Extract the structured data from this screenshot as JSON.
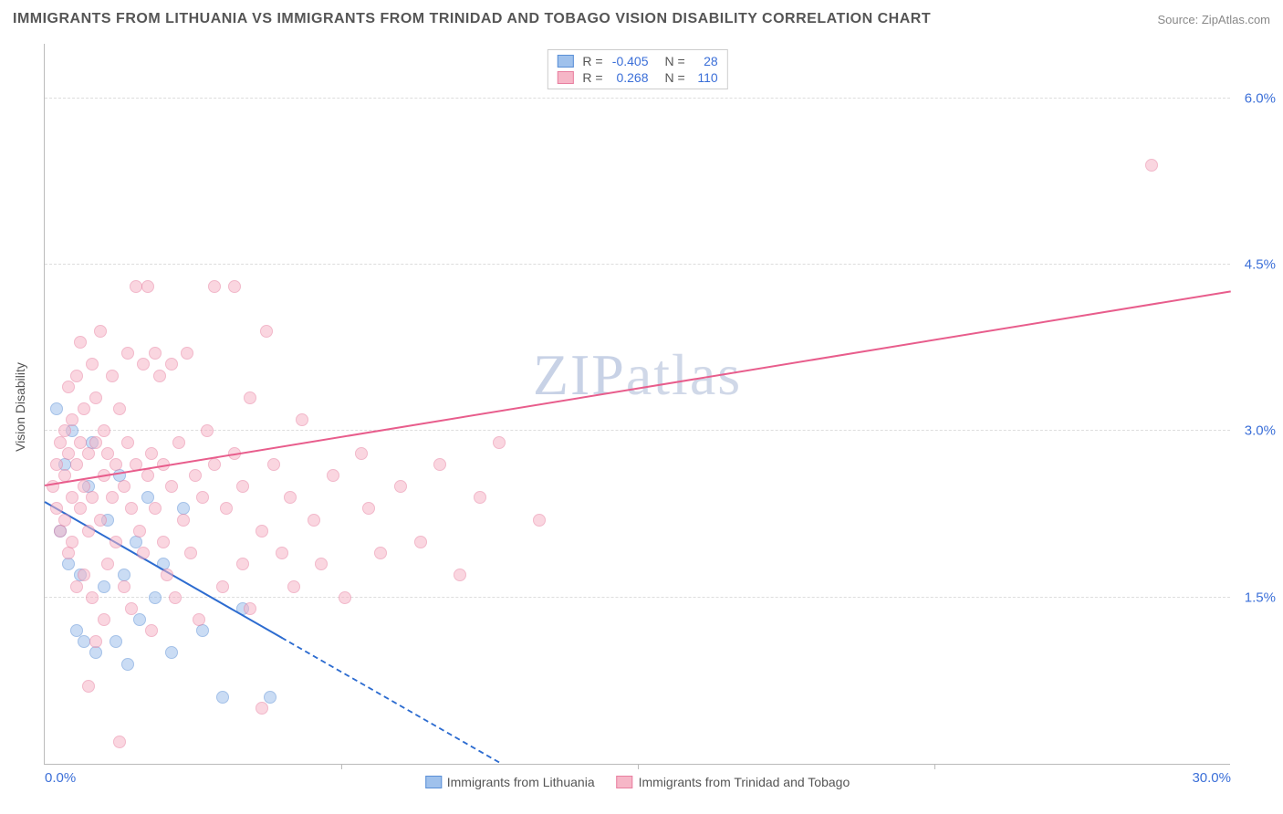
{
  "title": "IMMIGRANTS FROM LITHUANIA VS IMMIGRANTS FROM TRINIDAD AND TOBAGO VISION DISABILITY CORRELATION CHART",
  "source": "Source: ZipAtlas.com",
  "watermark": "ZIPatlas",
  "ylabel": "Vision Disability",
  "chart": {
    "type": "scatter",
    "background_color": "#ffffff",
    "grid_color": "#dddddd",
    "axis_color": "#bbbbbb",
    "xlim": [
      0.0,
      30.0
    ],
    "ylim": [
      0.0,
      6.5
    ],
    "xticks": [
      0.0,
      30.0
    ],
    "xtick_labels": [
      "0.0%",
      "30.0%"
    ],
    "xtick_marks": [
      0.25,
      0.5,
      0.75
    ],
    "yticks": [
      1.5,
      3.0,
      4.5,
      6.0
    ],
    "ytick_labels": [
      "1.5%",
      "3.0%",
      "4.5%",
      "6.0%"
    ],
    "point_radius": 7,
    "point_opacity": 0.55,
    "label_fontsize": 15,
    "tick_color": "#3b6fd8"
  },
  "series": [
    {
      "name": "Immigrants from Lithuania",
      "fill": "#9fc1ec",
      "stroke": "#5a8fd6",
      "stats": {
        "R": "-0.405",
        "N": "28"
      },
      "trend": {
        "x1": 0.0,
        "y1": 2.35,
        "x2": 11.5,
        "y2": 0.0,
        "color": "#2d6cd0",
        "width": 2.5,
        "dash_from_x": 6.0
      },
      "points": [
        [
          0.3,
          3.2
        ],
        [
          0.4,
          2.1
        ],
        [
          0.5,
          2.7
        ],
        [
          0.6,
          1.8
        ],
        [
          0.7,
          3.0
        ],
        [
          0.8,
          1.2
        ],
        [
          0.9,
          1.7
        ],
        [
          1.0,
          1.1
        ],
        [
          1.1,
          2.5
        ],
        [
          1.2,
          2.9
        ],
        [
          1.3,
          1.0
        ],
        [
          1.5,
          1.6
        ],
        [
          1.6,
          2.2
        ],
        [
          1.8,
          1.1
        ],
        [
          1.9,
          2.6
        ],
        [
          2.0,
          1.7
        ],
        [
          2.1,
          0.9
        ],
        [
          2.3,
          2.0
        ],
        [
          2.4,
          1.3
        ],
        [
          2.6,
          2.4
        ],
        [
          2.8,
          1.5
        ],
        [
          3.0,
          1.8
        ],
        [
          3.2,
          1.0
        ],
        [
          3.5,
          2.3
        ],
        [
          4.0,
          1.2
        ],
        [
          4.5,
          0.6
        ],
        [
          5.0,
          1.4
        ],
        [
          5.7,
          0.6
        ]
      ]
    },
    {
      "name": "Immigrants from Trinidad and Tobago",
      "fill": "#f6b6c7",
      "stroke": "#e87fa0",
      "stats": {
        "R": "0.268",
        "N": "110"
      },
      "trend": {
        "x1": 0.0,
        "y1": 2.5,
        "x2": 30.0,
        "y2": 4.25,
        "color": "#e85d8c",
        "width": 2.5
      },
      "points": [
        [
          0.2,
          2.5
        ],
        [
          0.3,
          2.7
        ],
        [
          0.3,
          2.3
        ],
        [
          0.4,
          2.9
        ],
        [
          0.4,
          2.1
        ],
        [
          0.5,
          3.0
        ],
        [
          0.5,
          2.6
        ],
        [
          0.5,
          2.2
        ],
        [
          0.6,
          2.8
        ],
        [
          0.6,
          3.4
        ],
        [
          0.6,
          1.9
        ],
        [
          0.7,
          2.4
        ],
        [
          0.7,
          3.1
        ],
        [
          0.7,
          2.0
        ],
        [
          0.8,
          2.7
        ],
        [
          0.8,
          3.5
        ],
        [
          0.8,
          1.6
        ],
        [
          0.9,
          2.3
        ],
        [
          0.9,
          2.9
        ],
        [
          0.9,
          3.8
        ],
        [
          1.0,
          2.5
        ],
        [
          1.0,
          1.7
        ],
        [
          1.0,
          3.2
        ],
        [
          1.1,
          2.1
        ],
        [
          1.1,
          2.8
        ],
        [
          1.1,
          0.7
        ],
        [
          1.2,
          3.6
        ],
        [
          1.2,
          2.4
        ],
        [
          1.2,
          1.5
        ],
        [
          1.3,
          2.9
        ],
        [
          1.3,
          1.1
        ],
        [
          1.3,
          3.3
        ],
        [
          1.4,
          2.2
        ],
        [
          1.4,
          3.9
        ],
        [
          1.5,
          2.6
        ],
        [
          1.5,
          1.3
        ],
        [
          1.5,
          3.0
        ],
        [
          1.6,
          2.8
        ],
        [
          1.6,
          1.8
        ],
        [
          1.7,
          2.4
        ],
        [
          1.7,
          3.5
        ],
        [
          1.8,
          2.0
        ],
        [
          1.8,
          2.7
        ],
        [
          1.9,
          0.2
        ],
        [
          1.9,
          3.2
        ],
        [
          2.0,
          2.5
        ],
        [
          2.0,
          1.6
        ],
        [
          2.1,
          2.9
        ],
        [
          2.1,
          3.7
        ],
        [
          2.2,
          2.3
        ],
        [
          2.2,
          1.4
        ],
        [
          2.3,
          2.7
        ],
        [
          2.3,
          4.3
        ],
        [
          2.4,
          2.1
        ],
        [
          2.5,
          3.6
        ],
        [
          2.5,
          1.9
        ],
        [
          2.6,
          2.6
        ],
        [
          2.6,
          4.3
        ],
        [
          2.7,
          2.8
        ],
        [
          2.7,
          1.2
        ],
        [
          2.8,
          3.7
        ],
        [
          2.8,
          2.3
        ],
        [
          2.9,
          3.5
        ],
        [
          3.0,
          2.0
        ],
        [
          3.0,
          2.7
        ],
        [
          3.1,
          1.7
        ],
        [
          3.2,
          2.5
        ],
        [
          3.2,
          3.6
        ],
        [
          3.3,
          1.5
        ],
        [
          3.4,
          2.9
        ],
        [
          3.5,
          2.2
        ],
        [
          3.6,
          3.7
        ],
        [
          3.7,
          1.9
        ],
        [
          3.8,
          2.6
        ],
        [
          3.9,
          1.3
        ],
        [
          4.0,
          2.4
        ],
        [
          4.1,
          3.0
        ],
        [
          4.3,
          2.7
        ],
        [
          4.3,
          4.3
        ],
        [
          4.5,
          1.6
        ],
        [
          4.6,
          2.3
        ],
        [
          4.8,
          2.8
        ],
        [
          4.8,
          4.3
        ],
        [
          5.0,
          1.8
        ],
        [
          5.0,
          2.5
        ],
        [
          5.2,
          1.4
        ],
        [
          5.2,
          3.3
        ],
        [
          5.5,
          2.1
        ],
        [
          5.5,
          0.5
        ],
        [
          5.6,
          3.9
        ],
        [
          5.8,
          2.7
        ],
        [
          6.0,
          1.9
        ],
        [
          6.2,
          2.4
        ],
        [
          6.3,
          1.6
        ],
        [
          6.5,
          3.1
        ],
        [
          6.8,
          2.2
        ],
        [
          7.0,
          1.8
        ],
        [
          7.3,
          2.6
        ],
        [
          7.6,
          1.5
        ],
        [
          8.0,
          2.8
        ],
        [
          8.2,
          2.3
        ],
        [
          8.5,
          1.9
        ],
        [
          9.0,
          2.5
        ],
        [
          9.5,
          2.0
        ],
        [
          10.0,
          2.7
        ],
        [
          10.5,
          1.7
        ],
        [
          11.0,
          2.4
        ],
        [
          11.5,
          2.9
        ],
        [
          12.5,
          2.2
        ],
        [
          28.0,
          5.4
        ]
      ]
    }
  ],
  "legend_bottom": {
    "items": [
      {
        "label": "Immigrants from Lithuania",
        "fill": "#9fc1ec",
        "stroke": "#5a8fd6"
      },
      {
        "label": "Immigrants from Trinidad and Tobago",
        "fill": "#f6b6c7",
        "stroke": "#e87fa0"
      }
    ]
  }
}
